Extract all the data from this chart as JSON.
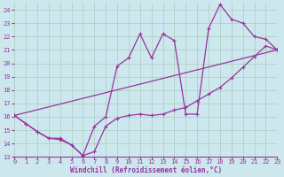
{
  "bg_color": "#cce8ee",
  "grid_color": "#aaccbb",
  "line_color": "#993399",
  "xlabel": "Windchill (Refroidissement éolien,°C)",
  "xlim": [
    0,
    23
  ],
  "ylim": [
    13,
    24.5
  ],
  "yticks": [
    13,
    14,
    15,
    16,
    17,
    18,
    19,
    20,
    21,
    22,
    23,
    24
  ],
  "xticks": [
    0,
    1,
    2,
    3,
    4,
    5,
    6,
    7,
    8,
    9,
    10,
    11,
    12,
    13,
    14,
    15,
    16,
    17,
    18,
    19,
    20,
    21,
    22,
    23
  ],
  "line1_x": [
    0,
    23
  ],
  "line1_y": [
    16.1,
    21.0
  ],
  "line2_x": [
    0,
    1,
    2,
    3,
    4,
    5,
    6,
    7,
    8,
    9,
    10,
    11,
    12,
    13,
    14,
    15,
    16,
    17,
    18,
    19,
    20,
    21,
    22,
    23
  ],
  "line2_y": [
    16.1,
    15.5,
    14.9,
    14.4,
    14.3,
    13.9,
    13.1,
    13.4,
    15.3,
    15.9,
    16.1,
    16.2,
    16.1,
    16.2,
    16.5,
    16.7,
    17.2,
    17.7,
    18.2,
    18.9,
    19.7,
    20.5,
    21.3,
    21.0
  ],
  "line3_x": [
    0,
    1,
    2,
    3,
    4,
    5,
    6,
    7,
    8,
    9,
    10,
    11,
    12,
    13,
    14,
    15,
    16,
    17,
    18,
    19,
    20,
    21,
    22,
    23
  ],
  "line3_y": [
    16.1,
    15.5,
    14.9,
    14.4,
    14.4,
    13.9,
    13.1,
    15.3,
    16.0,
    19.8,
    20.4,
    22.2,
    20.4,
    22.2,
    21.7,
    16.2,
    16.2,
    22.6,
    24.4,
    23.3,
    23.0,
    22.0,
    21.8,
    21.0
  ]
}
